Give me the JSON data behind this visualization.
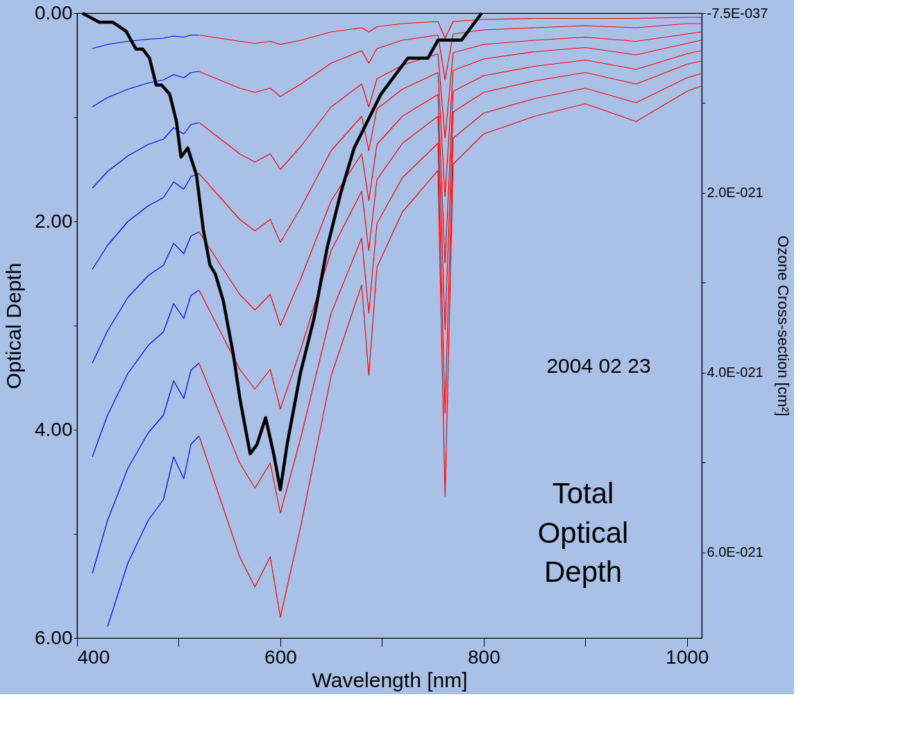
{
  "chart_data": {
    "type": "line",
    "xlabel": "Wavelength [nm]",
    "ylabel": "Optical Depth",
    "y2label": "Ozone Cross-section [cm²]",
    "annotations": [
      "2004 02 23",
      "Total Optical Depth"
    ],
    "xlim": [
      400,
      1014.5
    ],
    "ylim": [
      6,
      0
    ],
    "y2lim": [
      6.95e-21,
      0
    ],
    "xticks": [
      400,
      {
        "value": 500,
        "label": null
      },
      600,
      {
        "value": 700,
        "label": null
      },
      800,
      {
        "value": 900,
        "label": null
      },
      1000
    ],
    "yticks": [
      {
        "value": 0,
        "label": "0.00"
      },
      {
        "value": 1,
        "label": null
      },
      {
        "value": 2,
        "label": "2.00"
      },
      {
        "value": 3,
        "label": null
      },
      {
        "value": 4,
        "label": "4.00"
      },
      {
        "value": 5,
        "label": null
      },
      {
        "value": 6,
        "label": "6.00"
      }
    ],
    "y2ticks": [
      {
        "value": 0,
        "label": "-7.5E-037"
      },
      {
        "value": 1e-21,
        "label": null
      },
      {
        "value": 2e-21,
        "label": "2.0E-021"
      },
      {
        "value": 3e-21,
        "label": null
      },
      {
        "value": 4e-21,
        "label": "4.0E-021"
      },
      {
        "value": 5e-21,
        "label": null
      },
      {
        "value": 6e-21,
        "label": "6.0E-021"
      }
    ],
    "grid": false,
    "legend": false,
    "marker": "none",
    "line_style": "solid",
    "series": [
      {
        "color": "#0000ff",
        "x": [
          415,
          430,
          450,
          470,
          485,
          495,
          505,
          512,
          520
        ],
        "values": [
          0.34,
          0.3,
          0.27,
          0.25,
          0.24,
          0.22,
          0.23,
          0.21,
          0.21
        ]
      },
      {
        "color": "#0000ff",
        "x": [
          415,
          430,
          450,
          470,
          485,
          495,
          505,
          512,
          520
        ],
        "values": [
          0.9,
          0.81,
          0.73,
          0.67,
          0.64,
          0.59,
          0.62,
          0.57,
          0.56
        ]
      },
      {
        "color": "#0000ff",
        "x": [
          415,
          430,
          450,
          470,
          485,
          495,
          505,
          512,
          520
        ],
        "values": [
          1.68,
          1.52,
          1.37,
          1.26,
          1.21,
          1.1,
          1.16,
          1.07,
          1.05
        ]
      },
      {
        "color": "#0000ff",
        "x": [
          415,
          430,
          450,
          470,
          485,
          495,
          505,
          512,
          520
        ],
        "values": [
          2.46,
          2.23,
          2.0,
          1.85,
          1.77,
          1.62,
          1.69,
          1.57,
          1.54
        ]
      },
      {
        "color": "#0000ff",
        "x": [
          415,
          430,
          450,
          470,
          485,
          495,
          505,
          512,
          520
        ],
        "values": [
          3.36,
          3.05,
          2.73,
          2.52,
          2.42,
          2.21,
          2.31,
          2.14,
          2.1
        ]
      },
      {
        "color": "#0000ff",
        "x": [
          415,
          430,
          450,
          470,
          485,
          495,
          505,
          512,
          520
        ],
        "values": [
          4.26,
          3.86,
          3.46,
          3.19,
          3.06,
          2.79,
          2.93,
          2.71,
          2.66
        ]
      },
      {
        "color": "#0000ff",
        "x": [
          415,
          430,
          450,
          470,
          485,
          495,
          505,
          512,
          520
        ],
        "values": [
          5.38,
          4.87,
          4.37,
          4.03,
          3.86,
          3.53,
          3.7,
          3.43,
          3.36
        ]
      },
      {
        "color": "#0000ff",
        "x": [
          430,
          450,
          470,
          485,
          495,
          505,
          512,
          520
        ],
        "values": [
          5.89,
          5.28,
          4.87,
          4.67,
          4.26,
          4.47,
          4.14,
          4.06
        ]
      },
      {
        "color": "#ff0000",
        "x": [
          520,
          540,
          560,
          575,
          590,
          600,
          620,
          650,
          680,
          687,
          695,
          720,
          755,
          762,
          770,
          800,
          850,
          900,
          950,
          1000,
          1014
        ],
        "values": [
          0.21,
          0.24,
          0.27,
          0.29,
          0.27,
          0.3,
          0.26,
          0.18,
          0.14,
          0.18,
          0.13,
          0.1,
          0.08,
          0.24,
          0.08,
          0.06,
          0.05,
          0.05,
          0.05,
          0.04,
          0.04
        ]
      },
      {
        "color": "#ff0000",
        "x": [
          520,
          540,
          560,
          575,
          590,
          600,
          620,
          650,
          680,
          687,
          695,
          720,
          755,
          762,
          770,
          800,
          850,
          900,
          950,
          1000,
          1014
        ],
        "values": [
          0.56,
          0.64,
          0.72,
          0.76,
          0.72,
          0.8,
          0.68,
          0.48,
          0.36,
          0.48,
          0.34,
          0.26,
          0.21,
          0.64,
          0.2,
          0.16,
          0.14,
          0.12,
          0.14,
          0.1,
          0.1
        ]
      },
      {
        "color": "#ff0000",
        "x": [
          520,
          540,
          560,
          575,
          590,
          600,
          620,
          650,
          680,
          687,
          695,
          720,
          755,
          762,
          770,
          800,
          850,
          900,
          950,
          1000,
          1014
        ],
        "values": [
          1.05,
          1.2,
          1.35,
          1.43,
          1.35,
          1.5,
          1.28,
          0.9,
          0.68,
          0.9,
          0.63,
          0.5,
          0.39,
          1.2,
          0.38,
          0.3,
          0.26,
          0.23,
          0.27,
          0.2,
          0.18
        ]
      },
      {
        "color": "#ff0000",
        "x": [
          520,
          540,
          560,
          575,
          590,
          600,
          620,
          650,
          680,
          687,
          695,
          720,
          755,
          762,
          770,
          800,
          850,
          900,
          950,
          1000,
          1014
        ],
        "values": [
          1.54,
          1.76,
          1.98,
          2.09,
          1.98,
          2.2,
          1.87,
          1.32,
          0.99,
          1.32,
          0.92,
          0.73,
          0.57,
          1.76,
          0.55,
          0.44,
          0.37,
          0.33,
          0.4,
          0.29,
          0.26
        ]
      },
      {
        "color": "#ff0000",
        "x": [
          520,
          540,
          560,
          575,
          590,
          600,
          620,
          650,
          680,
          687,
          695,
          720,
          755,
          762,
          770,
          800,
          850,
          900,
          950,
          1000,
          1014
        ],
        "values": [
          2.1,
          2.4,
          2.7,
          2.85,
          2.7,
          3.0,
          2.55,
          1.8,
          1.35,
          1.8,
          1.26,
          0.99,
          0.78,
          2.4,
          0.75,
          0.6,
          0.51,
          0.45,
          0.54,
          0.39,
          0.36
        ]
      },
      {
        "color": "#ff0000",
        "x": [
          520,
          540,
          560,
          575,
          590,
          600,
          620,
          650,
          680,
          687,
          695,
          720,
          755,
          762,
          770,
          800,
          850,
          900,
          950,
          1000,
          1014
        ],
        "values": [
          2.66,
          3.04,
          3.42,
          3.61,
          3.42,
          3.8,
          3.23,
          2.28,
          1.71,
          2.28,
          1.6,
          1.25,
          0.99,
          3.04,
          0.95,
          0.76,
          0.65,
          0.57,
          0.68,
          0.49,
          0.46
        ]
      },
      {
        "color": "#ff0000",
        "x": [
          520,
          540,
          560,
          575,
          590,
          600,
          620,
          650,
          680,
          687,
          695,
          720,
          755,
          762,
          770,
          800,
          850,
          900,
          950,
          1000,
          1014
        ],
        "values": [
          3.36,
          3.84,
          4.32,
          4.56,
          4.32,
          4.8,
          4.08,
          2.88,
          2.16,
          2.88,
          2.02,
          1.58,
          1.25,
          3.84,
          1.2,
          0.96,
          0.82,
          0.72,
          0.86,
          0.62,
          0.58
        ]
      },
      {
        "color": "#ff0000",
        "x": [
          520,
          540,
          560,
          575,
          590,
          600,
          620,
          650,
          680,
          687,
          695,
          720,
          755,
          762,
          770,
          800,
          850,
          900,
          950,
          1000,
          1014
        ],
        "values": [
          4.06,
          4.64,
          5.22,
          5.51,
          5.22,
          5.8,
          4.93,
          3.48,
          2.61,
          3.48,
          2.44,
          1.91,
          1.51,
          4.64,
          1.45,
          1.16,
          0.99,
          0.87,
          1.04,
          0.75,
          0.7
        ]
      },
      {
        "color": "#000000",
        "axis": "y2",
        "x": [
          405.3,
          421.8,
          435.0,
          448.2,
          458.1,
          464.7,
          471.3,
          477.9,
          483.2,
          491.1,
          497.7,
          502.3,
          508.9,
          517.5,
          524.1,
          530.7,
          536.0,
          543.9,
          553.8,
          560.4,
          570.3,
          576.9,
          585.5,
          593.4,
          600.0,
          606.6,
          619.8,
          633.0,
          646.2,
          659.4,
          672.6,
          685.8,
          699.0,
          712.2,
          725.4,
          738.6,
          745.2,
          755.1,
          768.3,
          778.2,
          784.8,
          791.4,
          798.0
        ],
        "values": [
          0,
          1e-22,
          1e-22,
          2e-22,
          4e-22,
          4e-22,
          5e-22,
          8e-22,
          8e-22,
          9e-22,
          1.2e-21,
          1.6e-21,
          1.5e-21,
          1.8e-21,
          2.4e-21,
          2.8e-21,
          2.9e-21,
          3.2e-21,
          3.8e-21,
          4.3e-21,
          4.9e-21,
          4.8e-21,
          4.5e-21,
          4.9e-21,
          5.3e-21,
          4.8e-21,
          4e-21,
          3.4e-21,
          2.6e-21,
          2e-21,
          1.5e-21,
          1.2e-21,
          9e-22,
          7e-22,
          5e-22,
          5e-22,
          5e-22,
          3e-22,
          3e-22,
          3e-22,
          2e-22,
          1e-22,
          0
        ]
      }
    ]
  }
}
